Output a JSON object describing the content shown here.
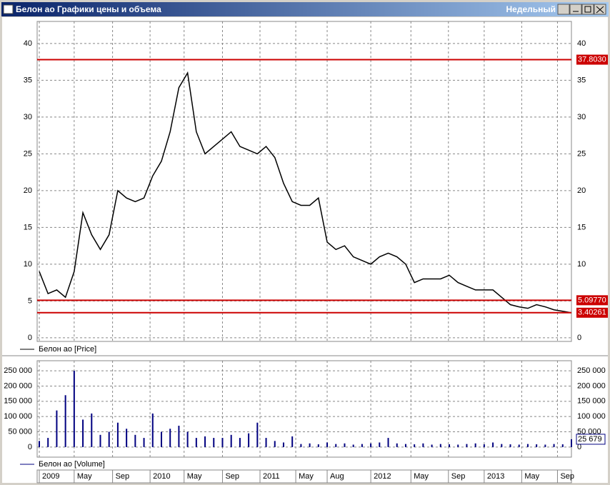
{
  "window": {
    "title": "Белон ао Графики цены и объема",
    "period": "Недельный"
  },
  "chart_data": [
    {
      "type": "line",
      "legend": "Белон ао [Price]",
      "color": "#000000",
      "values": [
        9,
        6,
        6.5,
        5.5,
        9,
        17,
        14,
        12,
        14,
        20,
        19,
        18.5,
        19,
        22,
        24,
        28,
        34,
        36,
        28,
        25,
        26,
        27,
        28,
        26,
        25.5,
        25,
        26,
        24.5,
        21,
        18.5,
        18,
        18,
        19,
        13,
        12,
        12.5,
        11,
        10.5,
        10,
        11,
        11.5,
        11,
        10,
        7.5,
        8,
        8,
        8,
        8.5,
        7.5,
        7,
        6.5,
        6.5,
        6.5,
        5.5,
        4.5,
        4.2,
        4,
        4.5,
        4.2,
        3.8,
        3.6,
        3.4
      ],
      "xlim": [
        0,
        61
      ],
      "ylim": [
        -0.5,
        43
      ],
      "yticks": [
        0,
        5,
        10,
        15,
        20,
        25,
        30,
        35,
        40
      ],
      "grid": true,
      "levels": [
        {
          "value": 37.803,
          "label": "37.8030"
        },
        {
          "value": 5.0977,
          "label": "5.09770"
        },
        {
          "value": 3.40261,
          "label": "3.40261"
        }
      ],
      "level_color": "#cc0000"
    },
    {
      "type": "bar",
      "legend": "Белон ао [Volume]",
      "color": "#000080",
      "values": [
        20000,
        30000,
        120000,
        170000,
        250000,
        90000,
        110000,
        40000,
        50000,
        80000,
        60000,
        40000,
        30000,
        110000,
        50000,
        60000,
        70000,
        50000,
        30000,
        35000,
        30000,
        30000,
        40000,
        30000,
        45000,
        80000,
        30000,
        20000,
        15000,
        35000,
        10000,
        12000,
        9000,
        15000,
        10000,
        12000,
        8000,
        10000,
        12000,
        15000,
        30000,
        12000,
        10000,
        9000,
        12000,
        8000,
        10000,
        9000,
        8000,
        10000,
        12000,
        9000,
        15000,
        10000,
        9000,
        8000,
        10000,
        9000,
        8000,
        10000,
        9000,
        25679
      ],
      "last_label": {
        "value": 25679,
        "label": "25 679"
      },
      "xlim": [
        0,
        61
      ],
      "ylim": [
        -33000,
        283000
      ],
      "yticks": [
        0,
        {
          "value": 50000,
          "label": "50 000"
        },
        {
          "value": 100000,
          "label": "100 000"
        },
        {
          "value": 150000,
          "label": "150 000"
        },
        {
          "value": 200000,
          "label": "200 000"
        },
        {
          "value": 250000,
          "label": "250 000"
        }
      ],
      "grid": true,
      "xticks": [
        {
          "value": 0,
          "label": "2009"
        },
        {
          "value": 4,
          "label": "May"
        },
        {
          "value": 8.4,
          "label": "Sep"
        },
        {
          "value": 12.7,
          "label": "2010"
        },
        {
          "value": 16.6,
          "label": "May"
        },
        {
          "value": 21,
          "label": "Sep"
        },
        {
          "value": 25.3,
          "label": "2011"
        },
        {
          "value": 29.4,
          "label": "May"
        },
        {
          "value": 33,
          "label": "Aug"
        },
        {
          "value": 38,
          "label": "2012"
        },
        {
          "value": 42.6,
          "label": "May"
        },
        {
          "value": 46.9,
          "label": "Sep"
        },
        {
          "value": 51,
          "label": "2013"
        },
        {
          "value": 55.3,
          "label": "May"
        },
        {
          "value": 59.4,
          "label": "Sep"
        }
      ]
    }
  ]
}
